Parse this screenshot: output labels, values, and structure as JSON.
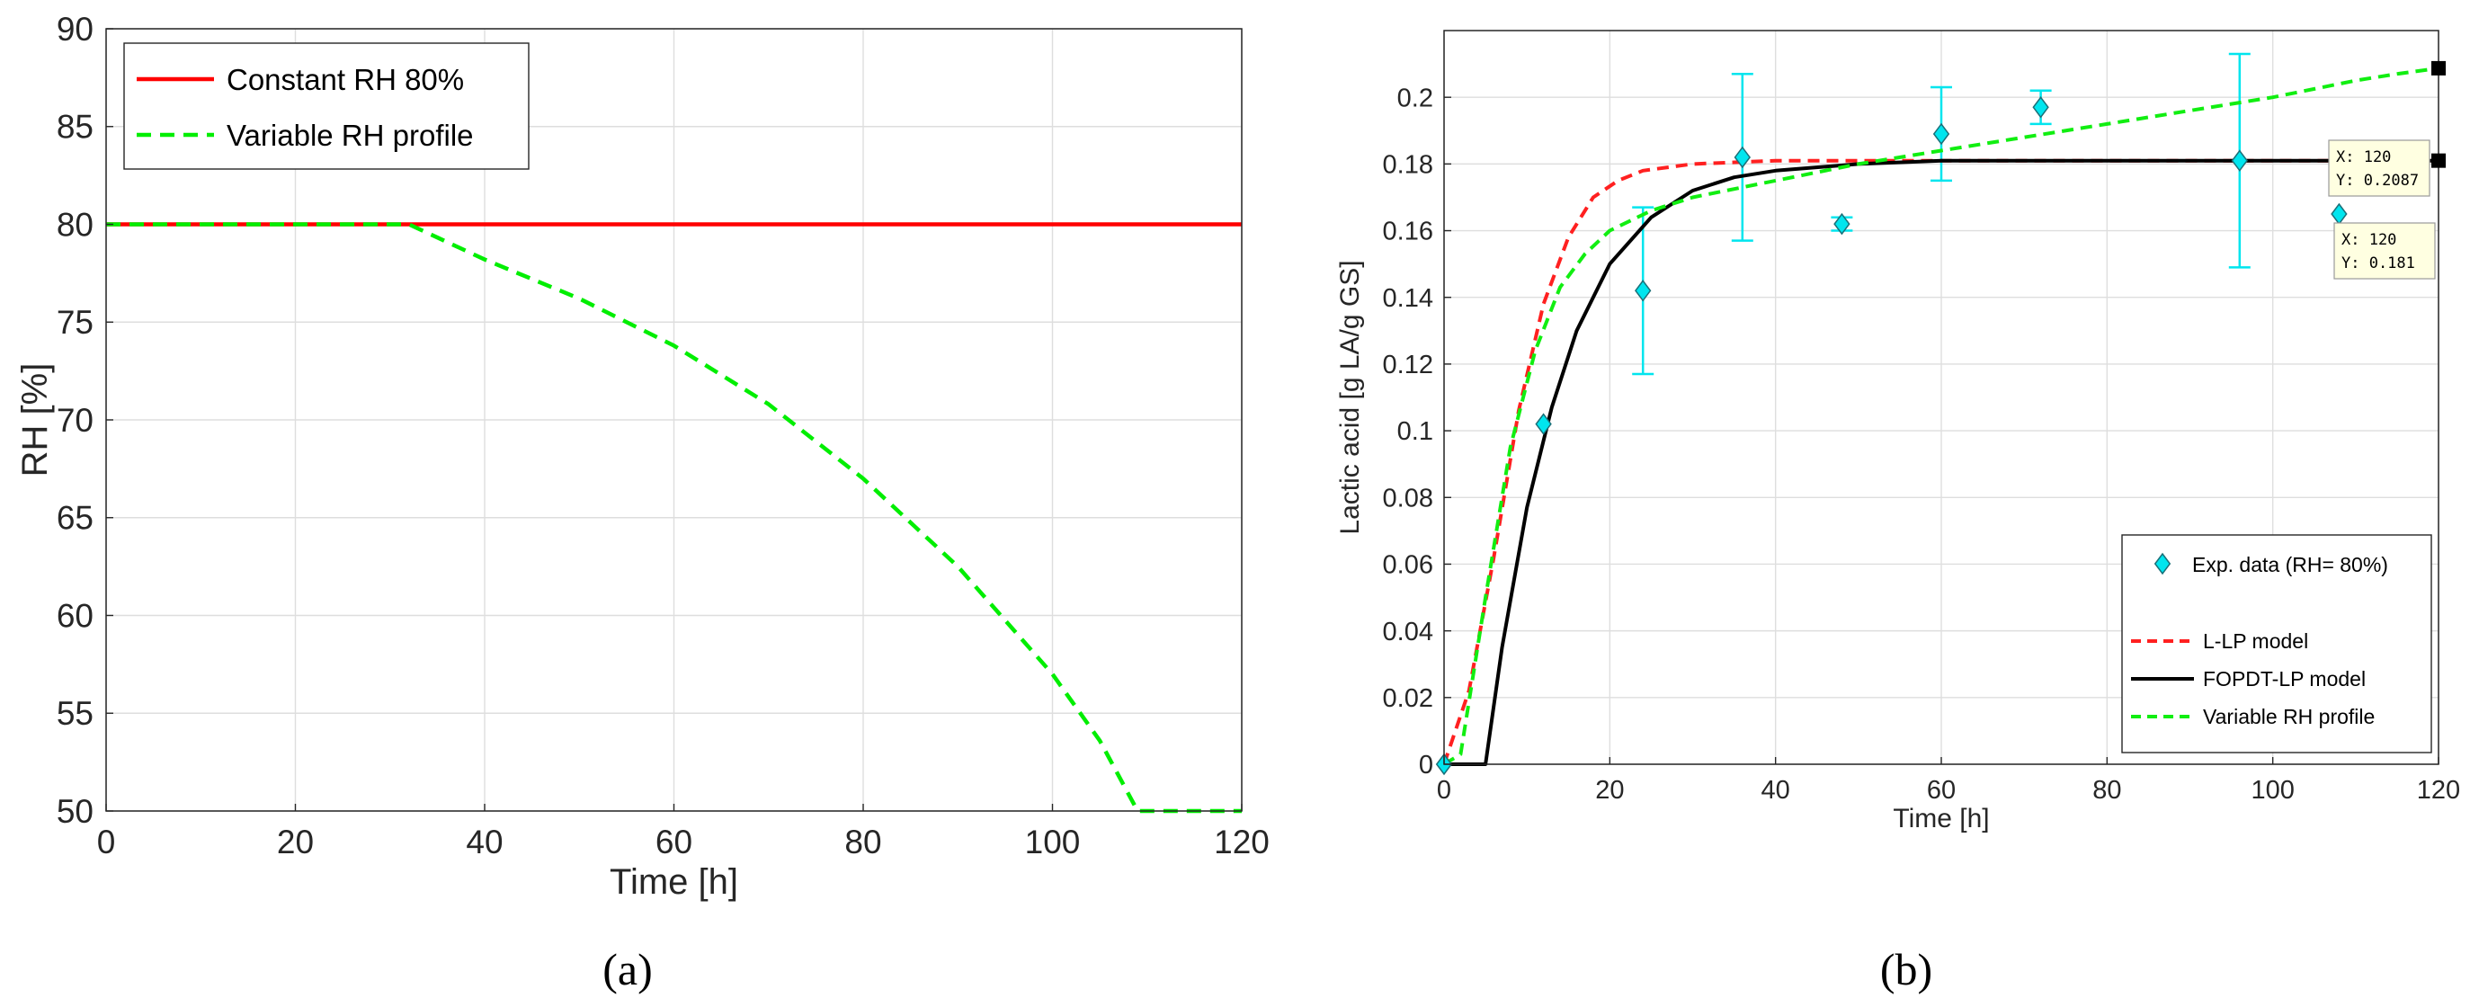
{
  "chart_data": [
    {
      "panel": "(a)",
      "type": "line",
      "xlabel": "Time [h]",
      "ylabel": "RH [%]",
      "xlim": [
        0,
        120
      ],
      "ylim": [
        50,
        90
      ],
      "xticks": [
        0,
        20,
        40,
        60,
        80,
        100,
        120
      ],
      "yticks": [
        50,
        55,
        60,
        65,
        70,
        75,
        80,
        85,
        90
      ],
      "grid": true,
      "legend_position": "top-left",
      "series": [
        {
          "name": "Constant RH 80%",
          "color": "#ff0000",
          "style": "solid",
          "x": [
            0,
            120
          ],
          "y": [
            80,
            80
          ]
        },
        {
          "name": "Variable RH profile",
          "color": "#00ee00",
          "style": "dashed",
          "x": [
            0,
            32,
            40,
            50,
            60,
            70,
            80,
            90,
            100,
            105,
            109,
            110,
            120
          ],
          "y": [
            80,
            80,
            78.2,
            76.2,
            73.8,
            70.8,
            67.0,
            62.5,
            57.0,
            53.6,
            50,
            50,
            50
          ]
        }
      ]
    },
    {
      "panel": "(b)",
      "type": "line",
      "xlabel": "Time [h]",
      "ylabel": "Lactic acid [g LA/g GS]",
      "xlim": [
        0,
        120
      ],
      "ylim": [
        0,
        0.22
      ],
      "xticks": [
        0,
        20,
        40,
        60,
        80,
        100,
        120
      ],
      "yticks": [
        0,
        0.02,
        0.04,
        0.06,
        0.08,
        0.1,
        0.12,
        0.14,
        0.16,
        0.18,
        0.2
      ],
      "grid": true,
      "legend_position": "bottom-right",
      "scatter": {
        "name": "Exp. data (RH= 80%)",
        "color": "#00e5ee",
        "x": [
          0,
          12,
          24,
          36,
          48,
          60,
          72,
          96,
          108
        ],
        "y": [
          0,
          0.102,
          0.142,
          0.182,
          0.162,
          0.189,
          0.197,
          0.181,
          0.165
        ],
        "err": [
          0,
          0,
          0.025,
          0.025,
          0.002,
          0.014,
          0.005,
          0.032,
          0
        ]
      },
      "series": [
        {
          "name": "L-LP model",
          "color": "#ff2020",
          "style": "dashed",
          "x": [
            0,
            3,
            6,
            9,
            12,
            15,
            18,
            21,
            24,
            30,
            40,
            50,
            60,
            80,
            120
          ],
          "y": [
            0,
            0.022,
            0.062,
            0.106,
            0.138,
            0.158,
            0.17,
            0.175,
            0.178,
            0.18,
            0.181,
            0.181,
            0.181,
            0.181,
            0.181
          ]
        },
        {
          "name": "FOPDT-LP model",
          "color": "#000000",
          "style": "solid",
          "x": [
            0,
            5,
            7,
            10,
            13,
            16,
            20,
            25,
            30,
            35,
            40,
            50,
            60,
            80,
            120
          ],
          "y": [
            0,
            0,
            0.035,
            0.077,
            0.107,
            0.13,
            0.15,
            0.164,
            0.172,
            0.176,
            0.178,
            0.18,
            0.181,
            0.181,
            0.181
          ]
        },
        {
          "name": "Variable RH profile",
          "color": "#11ee11",
          "style": "dashed",
          "x": [
            0,
            2,
            5,
            8,
            11,
            14,
            17,
            20,
            25,
            30,
            40,
            50,
            60,
            70,
            80,
            90,
            100,
            110,
            115,
            120
          ],
          "y": [
            0,
            0.003,
            0.05,
            0.095,
            0.124,
            0.143,
            0.153,
            0.16,
            0.166,
            0.17,
            0.175,
            0.18,
            0.184,
            0.188,
            0.192,
            0.196,
            0.2,
            0.205,
            0.207,
            0.2087
          ]
        }
      ],
      "datatips": [
        {
          "x_label": "X: 120",
          "y_label": "Y: 0.2087",
          "x": 120,
          "y": 0.2087
        },
        {
          "x_label": "X: 120",
          "y_label": "Y: 0.181",
          "x": 120,
          "y": 0.181
        }
      ]
    }
  ],
  "captions": [
    "(a)",
    "(b)"
  ]
}
